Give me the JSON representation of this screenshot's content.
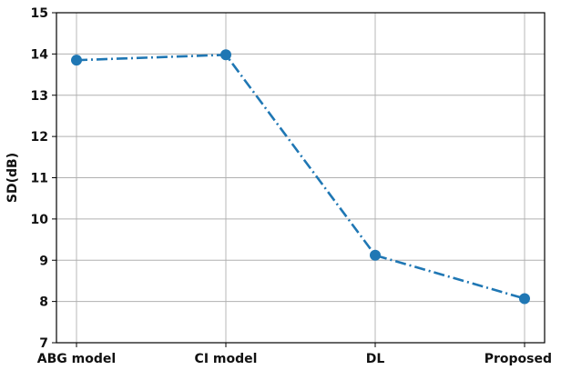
{
  "chart_data": {
    "type": "line",
    "title": "",
    "xlabel": "",
    "ylabel": "SD(dB)",
    "categories": [
      "ABG model",
      "CI model",
      "DL",
      "Proposed"
    ],
    "series": [
      {
        "values": [
          13.85,
          13.98,
          9.12,
          8.07
        ],
        "color": "#1f77b4",
        "line_style": "dash-dot",
        "marker": "circle"
      }
    ],
    "ylim": [
      7,
      15
    ],
    "yticks": [
      7,
      8,
      9,
      10,
      11,
      12,
      13,
      14,
      15
    ],
    "grid": true,
    "legend": "none"
  }
}
